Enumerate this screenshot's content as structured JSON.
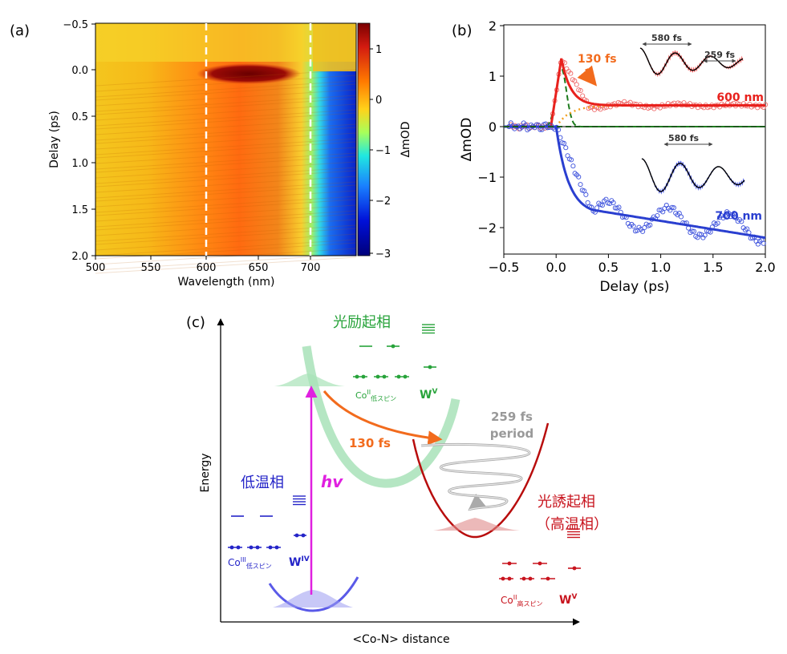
{
  "panel_a": {
    "label": "(a)",
    "xlabel": "Wavelength (nm)",
    "ylabel": "Delay (ps)",
    "colorbar_label": "ΔmOD",
    "xticks": [
      "500",
      "550",
      "600",
      "650",
      "700"
    ],
    "yticks": [
      "−0.5",
      "0.0",
      "0.5",
      "1.0",
      "1.5",
      "2.0"
    ],
    "cticks": [
      "1",
      "0",
      "−1",
      "−2",
      "−3"
    ]
  },
  "panel_b": {
    "label": "(b)",
    "xlabel": "Delay (ps)",
    "ylabel": "ΔmOD",
    "xticks": [
      "−0.5",
      "0.0",
      "0.5",
      "1.0",
      "1.5",
      "2.0"
    ],
    "yticks": [
      "2",
      "1",
      "0",
      "−1",
      "−2"
    ],
    "annot_130": "130 fs",
    "label_600": "600 nm",
    "label_700": "700 nm",
    "inset1_580": "580 fs",
    "inset1_259": "259 fs",
    "inset2_580": "580 fs",
    "color_600": "#e8211d",
    "color_700": "#2a3fd0",
    "color_arrow": "#f26b1d"
  },
  "panel_c": {
    "label": "(c)",
    "xlabel": "<Co-N> distance",
    "ylabel": "Energy",
    "excited_phase": "光励起相",
    "low_temp_phase": "低温相",
    "photoinduced_phase": "光誘起相",
    "high_temp_paren": "（高温相）",
    "hv": "hv",
    "fs130": "130 fs",
    "fs259": "259 fs",
    "period": "period",
    "co_ls_exc_base": "Co",
    "co_ls_exc_sup": "II",
    "co_ls_exc_sub": "低スピン",
    "w_exc_base": "W",
    "w_exc_sup": "V",
    "co_low_base": "Co",
    "co_low_sup": "III",
    "co_low_sub": "低スピン",
    "w_low_base": "W",
    "w_low_sup": "IV",
    "co_hs_base": "Co",
    "co_hs_sup": "II",
    "co_hs_sub": "高スピン",
    "w_hs_base": "W",
    "w_hs_sup": "V",
    "color_green": "#27a33a",
    "color_blue": "#2424c8",
    "color_red": "#c8141e",
    "color_magenta": "#e020e0"
  }
}
